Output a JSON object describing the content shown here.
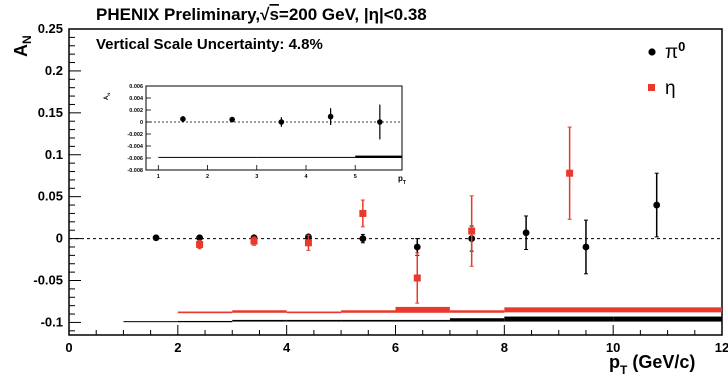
{
  "chart_data": {
    "type": "scatter",
    "title_prefix": "PHENIX Preliminary,",
    "title_sqrt": "√",
    "title_s": "s",
    "title_energy": "=200 GeV, |η|<0.38",
    "subtitle": "Vertical Scale Uncertainty: 4.8%",
    "ylabel_main": "A",
    "ylabel_sub": "N",
    "xlabel_main": "p",
    "xlabel_sub": "T",
    "xlabel_unit": " (GeV/c)",
    "xlim": [
      0,
      12
    ],
    "ylim": [
      -0.115,
      0.25
    ],
    "x_ticks": [
      "0",
      "2",
      "4",
      "6",
      "8",
      "10",
      "12"
    ],
    "y_ticks": [
      "-0.1",
      "-0.05",
      "0",
      "0.05",
      "0.1",
      "0.15",
      "0.2",
      "0.25"
    ],
    "legend_position": "top-right",
    "series": [
      {
        "name": "π",
        "name_sup": "0",
        "color": "#000000",
        "marker": "circle",
        "x": [
          1.6,
          2.4,
          3.4,
          4.4,
          5.4,
          6.4,
          7.4,
          8.4,
          9.5,
          10.8
        ],
        "y": [
          0.001,
          0.001,
          0.001,
          0.002,
          0.0,
          -0.01,
          0.0,
          0.007,
          -0.01,
          0.04
        ],
        "err": [
          0.002,
          0.002,
          0.002,
          0.003,
          0.005,
          0.01,
          0.015,
          0.02,
          0.032,
          0.038
        ]
      },
      {
        "name": "η",
        "name_sup": "",
        "color": "#e8392c",
        "marker": "square",
        "x": [
          2.4,
          3.4,
          4.4,
          5.4,
          6.4,
          7.4,
          9.2
        ],
        "y": [
          -0.007,
          -0.003,
          -0.005,
          0.03,
          -0.047,
          0.009,
          0.078
        ],
        "err": [
          0.005,
          0.005,
          0.009,
          0.016,
          0.03,
          0.042,
          0.055
        ]
      }
    ],
    "systematic_bands": [
      {
        "series": "π",
        "color": "#000000",
        "x0": 1.0,
        "x1": 2.0,
        "y": -0.099,
        "thickness": 0.001
      },
      {
        "series": "π",
        "color": "#000000",
        "x0": 2.0,
        "x1": 3.0,
        "y": -0.099,
        "thickness": 0.0015
      },
      {
        "series": "π",
        "color": "#000000",
        "x0": 3.0,
        "x1": 4.0,
        "y": -0.098,
        "thickness": 0.002
      },
      {
        "series": "π",
        "color": "#000000",
        "x0": 4.0,
        "x1": 5.0,
        "y": -0.098,
        "thickness": 0.002
      },
      {
        "series": "π",
        "color": "#000000",
        "x0": 5.0,
        "x1": 6.0,
        "y": -0.098,
        "thickness": 0.002
      },
      {
        "series": "π",
        "color": "#000000",
        "x0": 6.0,
        "x1": 7.0,
        "y": -0.098,
        "thickness": 0.002
      },
      {
        "series": "π",
        "color": "#000000",
        "x0": 7.0,
        "x1": 8.0,
        "y": -0.097,
        "thickness": 0.004
      },
      {
        "series": "π",
        "color": "#000000",
        "x0": 8.0,
        "x1": 10.0,
        "y": -0.096,
        "thickness": 0.006
      },
      {
        "series": "π",
        "color": "#000000",
        "x0": 10.0,
        "x1": 12.0,
        "y": -0.096,
        "thickness": 0.006
      },
      {
        "series": "η",
        "color": "#e8392c",
        "x0": 2.0,
        "x1": 3.0,
        "y": -0.088,
        "thickness": 0.002
      },
      {
        "series": "η",
        "color": "#e8392c",
        "x0": 3.0,
        "x1": 4.0,
        "y": -0.087,
        "thickness": 0.003
      },
      {
        "series": "η",
        "color": "#e8392c",
        "x0": 4.0,
        "x1": 5.0,
        "y": -0.088,
        "thickness": 0.002
      },
      {
        "series": "η",
        "color": "#e8392c",
        "x0": 5.0,
        "x1": 6.0,
        "y": -0.087,
        "thickness": 0.003
      },
      {
        "series": "η",
        "color": "#e8392c",
        "x0": 6.0,
        "x1": 7.0,
        "y": -0.085,
        "thickness": 0.007
      },
      {
        "series": "η",
        "color": "#e8392c",
        "x0": 7.0,
        "x1": 8.0,
        "y": -0.087,
        "thickness": 0.003
      },
      {
        "series": "η",
        "color": "#e8392c",
        "x0": 8.0,
        "x1": 12.0,
        "y": -0.085,
        "thickness": 0.006
      }
    ],
    "inset": {
      "ylabel_main": "A",
      "ylabel_sub": "N",
      "xlabel_main": "p",
      "xlabel_sub": "T",
      "xlim": [
        0.75,
        5.95
      ],
      "ylim": [
        -0.008,
        0.006
      ],
      "x_ticks": [
        "1",
        "2",
        "3",
        "4",
        "5"
      ],
      "y_ticks": [
        "-0.008",
        "-0.006",
        "-0.004",
        "-0.002",
        "0",
        "0.002",
        "0.004",
        "0.006"
      ],
      "points": {
        "x": [
          1.5,
          2.5,
          3.5,
          4.5,
          5.5
        ],
        "y": [
          0.0005,
          0.0004,
          0.0,
          0.0009,
          0.0
        ],
        "err": [
          0.0005,
          0.0004,
          0.0008,
          0.0014,
          0.0029
        ]
      },
      "bands": [
        {
          "x0": 1.0,
          "x1": 2.0,
          "y": -0.0059
        },
        {
          "x0": 2.0,
          "x1": 3.0,
          "y": -0.0059
        },
        {
          "x0": 3.0,
          "x1": 4.0,
          "y": -0.0059
        },
        {
          "x0": 4.0,
          "x1": 5.0,
          "y": -0.0059
        },
        {
          "x0": 5.0,
          "x1": 5.95,
          "y": -0.0058
        }
      ]
    }
  }
}
